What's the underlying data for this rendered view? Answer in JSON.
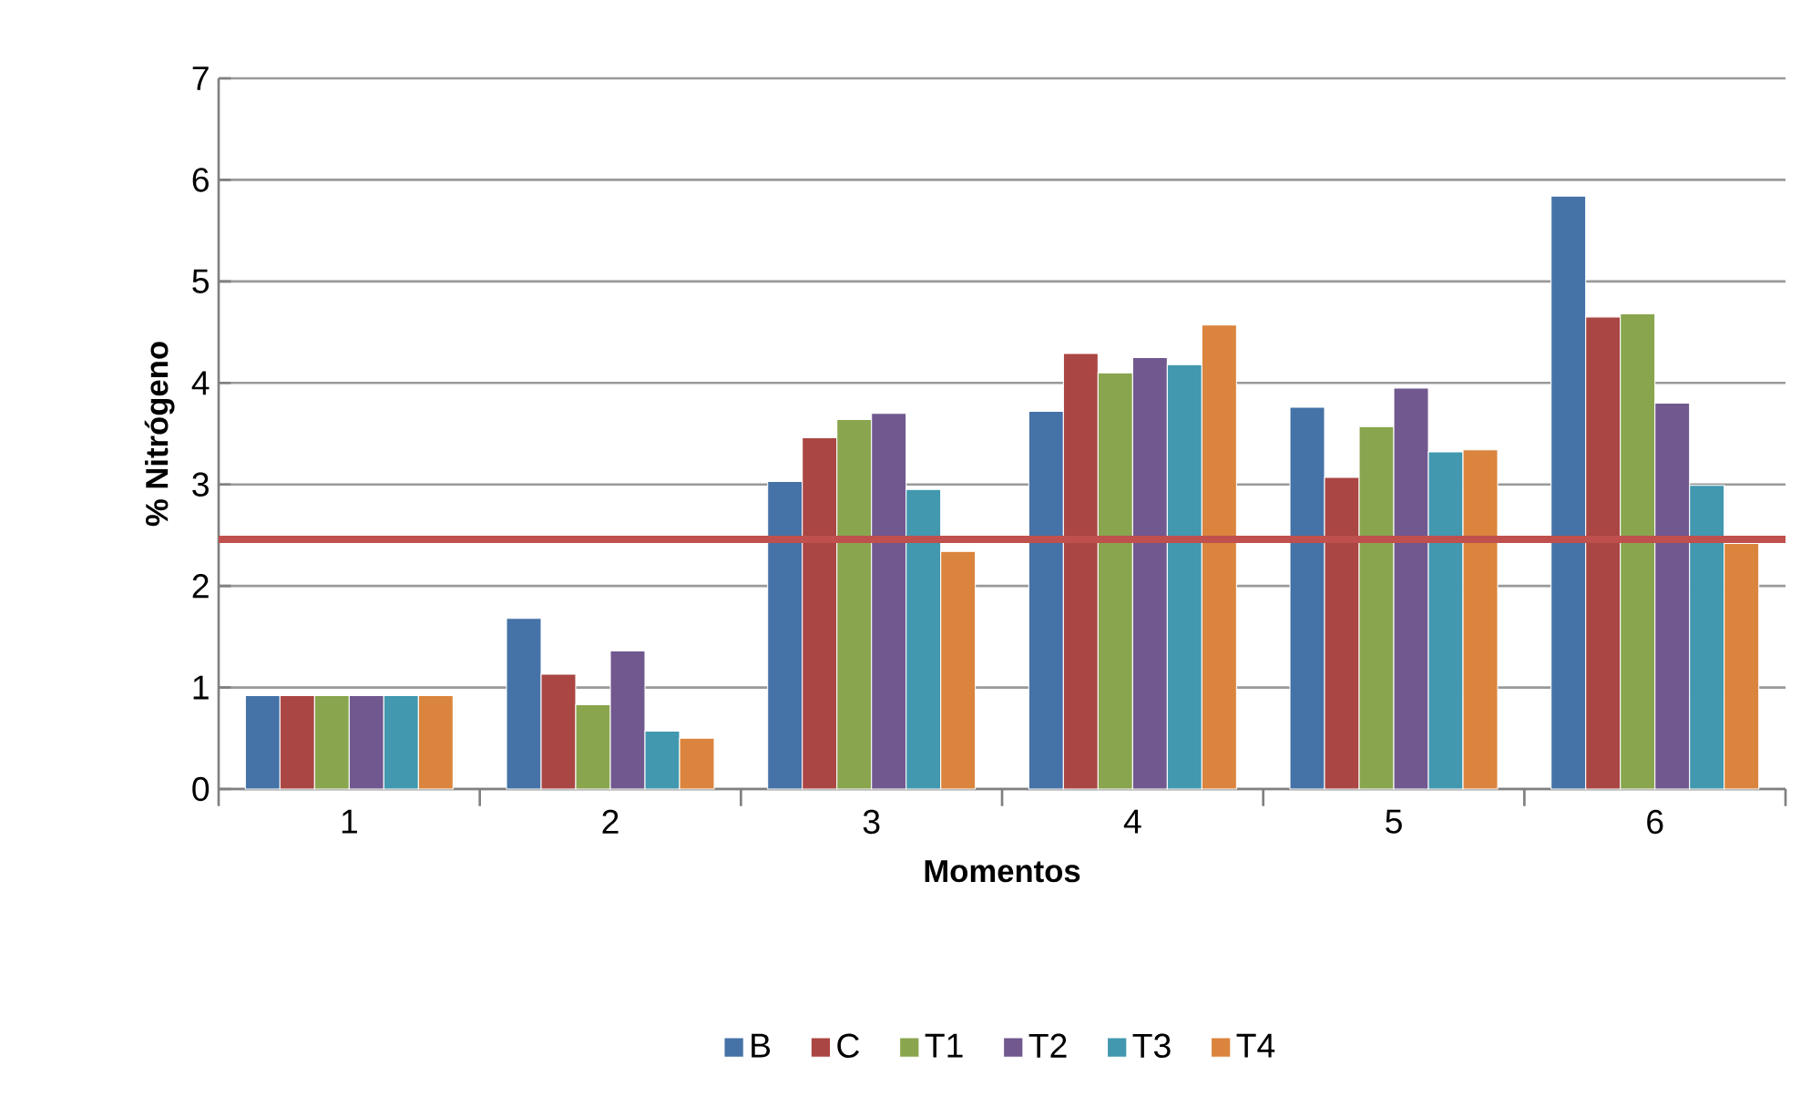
{
  "chart_data": {
    "type": "bar",
    "xlabel": "Momentos",
    "ylabel": "% Nitrógeno",
    "categories": [
      "1",
      "2",
      "3",
      "4",
      "5",
      "6"
    ],
    "series": [
      {
        "name": "B",
        "color": "#4572a7",
        "values": [
          0.92,
          1.68,
          3.03,
          3.72,
          3.76,
          5.84
        ]
      },
      {
        "name": "C",
        "color": "#aa4643",
        "values": [
          0.92,
          1.13,
          3.46,
          4.29,
          3.07,
          4.65
        ]
      },
      {
        "name": "T1",
        "color": "#89a54e",
        "values": [
          0.92,
          0.83,
          3.64,
          4.1,
          3.57,
          4.68
        ]
      },
      {
        "name": "T2",
        "color": "#71588f",
        "values": [
          0.92,
          1.36,
          3.7,
          4.25,
          3.95,
          3.8
        ]
      },
      {
        "name": "T3",
        "color": "#4198af",
        "values": [
          0.92,
          0.57,
          2.95,
          4.18,
          3.32,
          2.99
        ]
      },
      {
        "name": "T4",
        "color": "#db843d",
        "values": [
          0.92,
          0.5,
          2.34,
          4.57,
          3.34,
          2.42
        ]
      }
    ],
    "ylim": [
      0,
      7
    ],
    "yticks": [
      0,
      1,
      2,
      3,
      4,
      5,
      6,
      7
    ],
    "grid": "y",
    "legend": "bottom",
    "ref_lines": [
      {
        "axis": "y",
        "value": 2.46,
        "color": "#c0504d"
      }
    ]
  }
}
